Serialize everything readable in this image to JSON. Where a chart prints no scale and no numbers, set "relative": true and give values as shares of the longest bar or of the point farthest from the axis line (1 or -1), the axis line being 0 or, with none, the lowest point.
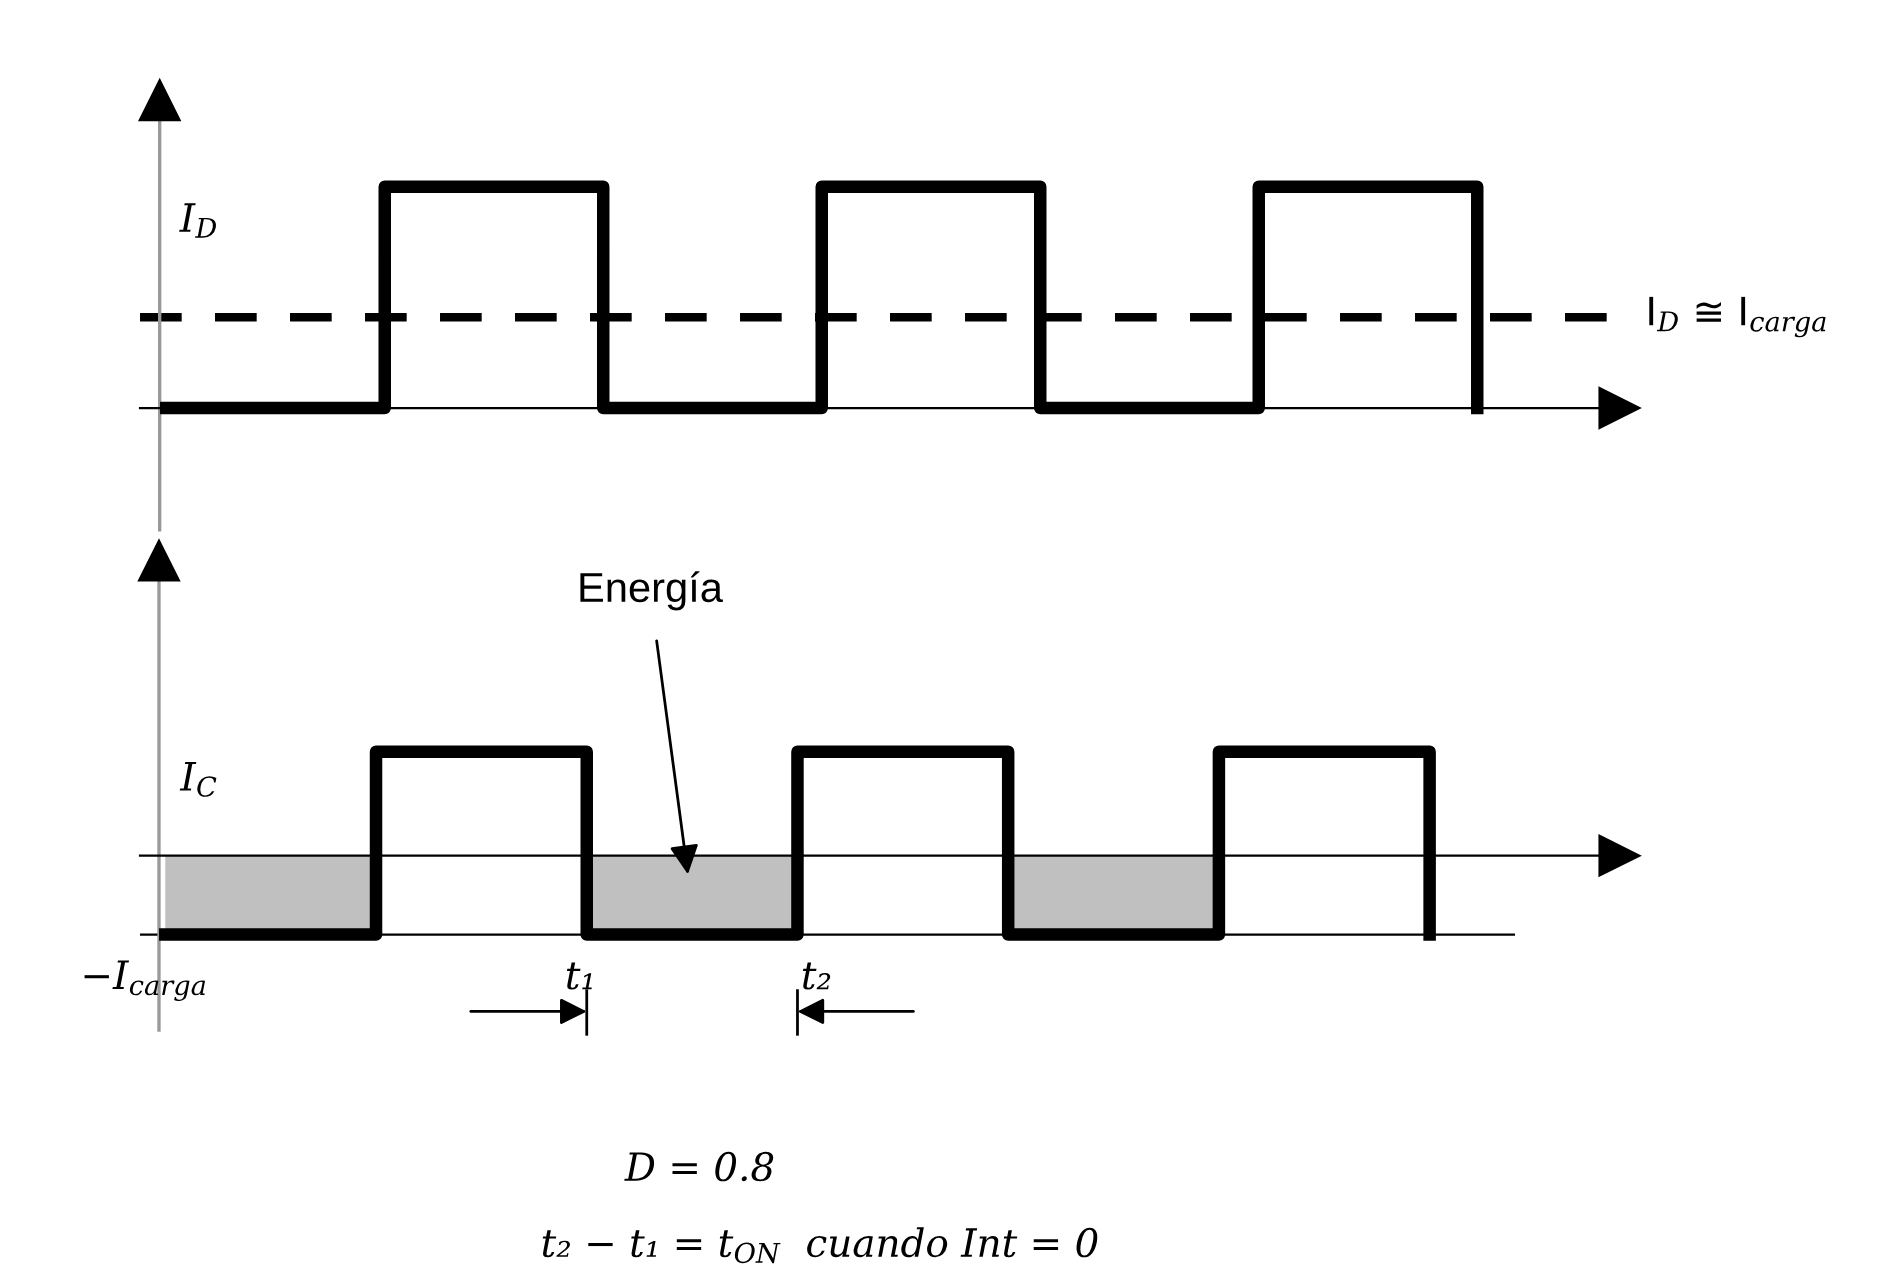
{
  "chart_data": [
    {
      "type": "step",
      "relative": true,
      "categories": [
        null,
        null,
        null,
        null,
        null,
        null,
        null
      ],
      "values": [
        0,
        1,
        0,
        1,
        0,
        1,
        0
      ],
      "color": "#000000",
      "ylabel": "I$_{D}$",
      "ref_lines": [
        {
          "axis": "y",
          "value": 0.41,
          "label": "I$_{D}$ ≅ I$_{carga}$",
          "line_style": "dashed",
          "color": "#000000"
        }
      ]
    },
    {
      "type": "step",
      "relative": true,
      "categories": [
        null,
        null,
        null,
        null,
        null,
        null,
        null
      ],
      "series": [
        {
          "type": "area",
          "color": "#c0c0c0",
          "values": [
            -0.76,
            0,
            -0.76,
            0,
            -0.76,
            0,
            0
          ]
        },
        {
          "type": "step",
          "color": "#000000",
          "values": [
            -0.76,
            1,
            -0.76,
            1,
            -0.76,
            1,
            -0.76
          ]
        }
      ],
      "ylabel": "I$_{C}$",
      "ref_lines": [
        {
          "axis": "y",
          "value": -0.76,
          "label": "−I$_{carga}$",
          "color": "#000000"
        }
      ],
      "annotations": [
        "Energía",
        "t₁",
        "t₂",
        "D = 0.8",
        "t₂ − t₁ = t$_{ON}$  cuando Int = 0"
      ]
    }
  ]
}
